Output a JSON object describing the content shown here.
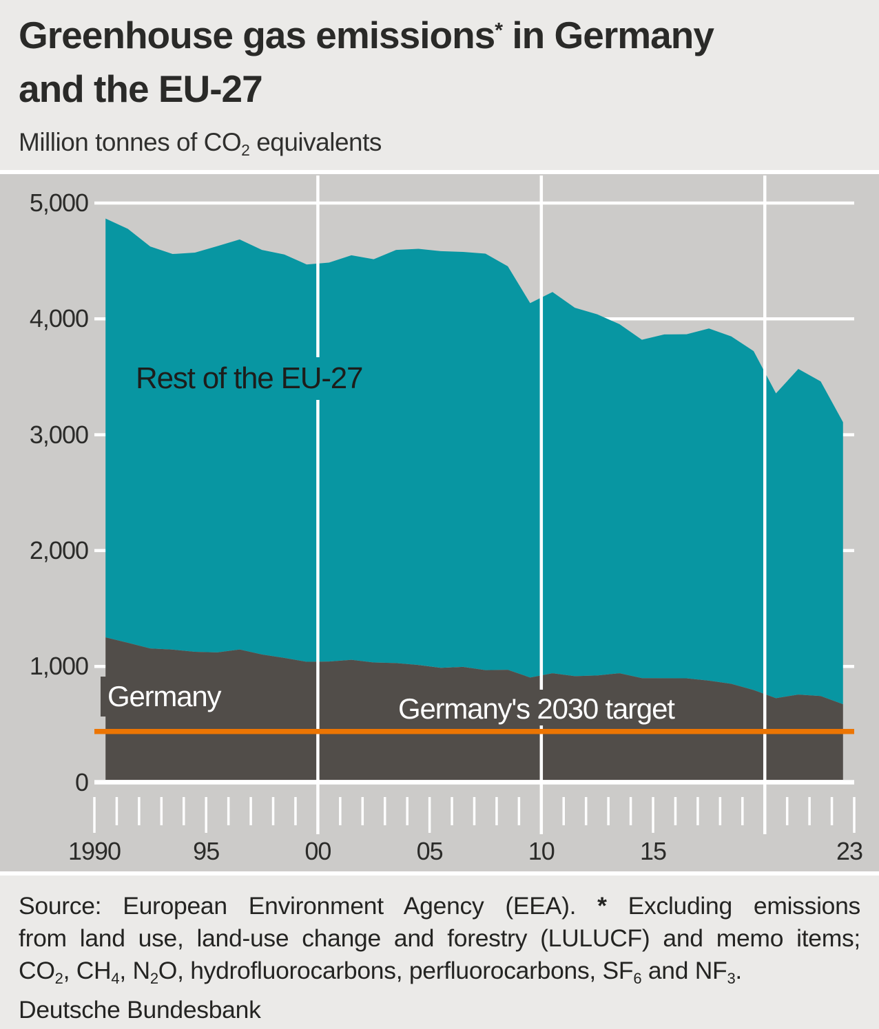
{
  "header": {
    "title_line1": [
      {
        "t": "Greenhouse gas emissions"
      },
      {
        "t": "*",
        "sup": true
      },
      {
        "t": " in Germany"
      }
    ],
    "title_line2": [
      {
        "t": "and the EU-27"
      }
    ],
    "subtitle": [
      {
        "t": "Million tonnes of CO"
      },
      {
        "t": "2",
        "sub": true
      },
      {
        "t": " equivalents"
      }
    ]
  },
  "chart": {
    "labels": {
      "rest": "Rest of the EU-27",
      "germany": "Germany",
      "target": "Germany's 2030 target"
    }
  },
  "chart_data": {
    "type": "area",
    "stacked": true,
    "title": "Greenhouse gas emissions in Germany and the EU-27",
    "ylabel": "Million tonnes of CO2 equivalents",
    "x": [
      1990,
      1991,
      1992,
      1993,
      1994,
      1995,
      1996,
      1997,
      1998,
      1999,
      2000,
      2001,
      2002,
      2003,
      2004,
      2005,
      2006,
      2007,
      2008,
      2009,
      2010,
      2011,
      2012,
      2013,
      2014,
      2015,
      2016,
      2017,
      2018,
      2019,
      2020,
      2021,
      2022,
      2023
    ],
    "series": [
      {
        "name": "Germany",
        "color": "#514d49",
        "values": [
          1251,
          1204,
          1155,
          1145,
          1126,
          1121,
          1146,
          1103,
          1073,
          1040,
          1042,
          1057,
          1034,
          1029,
          1012,
          988,
          996,
          968,
          971,
          904,
          941,
          916,
          922,
          941,
          899,
          898,
          897,
          877,
          850,
          796,
          726,
          757,
          744,
          674
        ]
      },
      {
        "name": "Rest of the EU-27",
        "color": "#0896a2",
        "values": [
          3615,
          3573,
          3470,
          3415,
          3446,
          3507,
          3540,
          3492,
          3483,
          3430,
          3444,
          3492,
          3481,
          3566,
          3593,
          3597,
          3582,
          3595,
          3483,
          3232,
          3291,
          3180,
          3118,
          3013,
          2921,
          2968,
          2970,
          3040,
          2999,
          2926,
          2631,
          2811,
          2716,
          2434
        ]
      }
    ],
    "eu27_total": [
      4866,
      4777,
      4625,
      4560,
      4572,
      4628,
      4686,
      4595,
      4556,
      4470,
      4486,
      4549,
      4515,
      4595,
      4605,
      4585,
      4578,
      4563,
      4454,
      4136,
      4232,
      4096,
      4040,
      3954,
      3820,
      3866,
      3867,
      3917,
      3849,
      3722,
      3357,
      3568,
      3460,
      3108
    ],
    "target_line": {
      "label": "Germany's 2030 target",
      "value": 438,
      "color": "#ec7503"
    },
    "ylim": [
      0,
      5000
    ],
    "yticks": [
      0,
      1000,
      2000,
      3000,
      4000,
      5000
    ],
    "ytick_labels": [
      "0",
      "1,000",
      "2,000",
      "3,000",
      "4,000",
      "5,000"
    ],
    "xticks": [
      {
        "year": 1990,
        "label": "1990"
      },
      {
        "year": 1995,
        "label": "95"
      },
      {
        "year": 2000,
        "label": "00"
      },
      {
        "year": 2005,
        "label": "05"
      },
      {
        "year": 2010,
        "label": "10"
      },
      {
        "year": 2015,
        "label": "15"
      },
      {
        "year": 2023,
        "label": "23"
      }
    ],
    "grid_years": [
      2000,
      2010,
      2020
    ],
    "grid": true,
    "legend_position": "inside-area-labels"
  },
  "footer": {
    "source_lines": [
      [
        {
          "t": "Source: European Environment Agency (EEA). "
        },
        {
          "t": "*",
          "b": true
        },
        {
          "t": " Excluding emissions"
        }
      ],
      [
        {
          "t": "from land use, land-use change and forestry (LULUCF) and memo items;"
        }
      ],
      [
        {
          "t": "CO"
        },
        {
          "t": "2",
          "sub": true
        },
        {
          "t": ", CH"
        },
        {
          "t": "4",
          "sub": true
        },
        {
          "t": ", N"
        },
        {
          "t": "2",
          "sub": true
        },
        {
          "t": "O, hydrofluorocarbons, perfluorocarbons, SF"
        },
        {
          "t": "6",
          "sub": true
        },
        {
          "t": " and NF"
        },
        {
          "t": "3",
          "sub": true
        },
        {
          "t": "."
        }
      ]
    ],
    "publisher": "Deutsche Bundesbank"
  },
  "colors": {
    "page_bg": "#ebeae8",
    "panel_bg": "#cccbc9",
    "grid": "#ffffff",
    "teal": "#0896a2",
    "dark": "#514d49",
    "orange": "#ec7503",
    "text": "#2b2b29"
  }
}
